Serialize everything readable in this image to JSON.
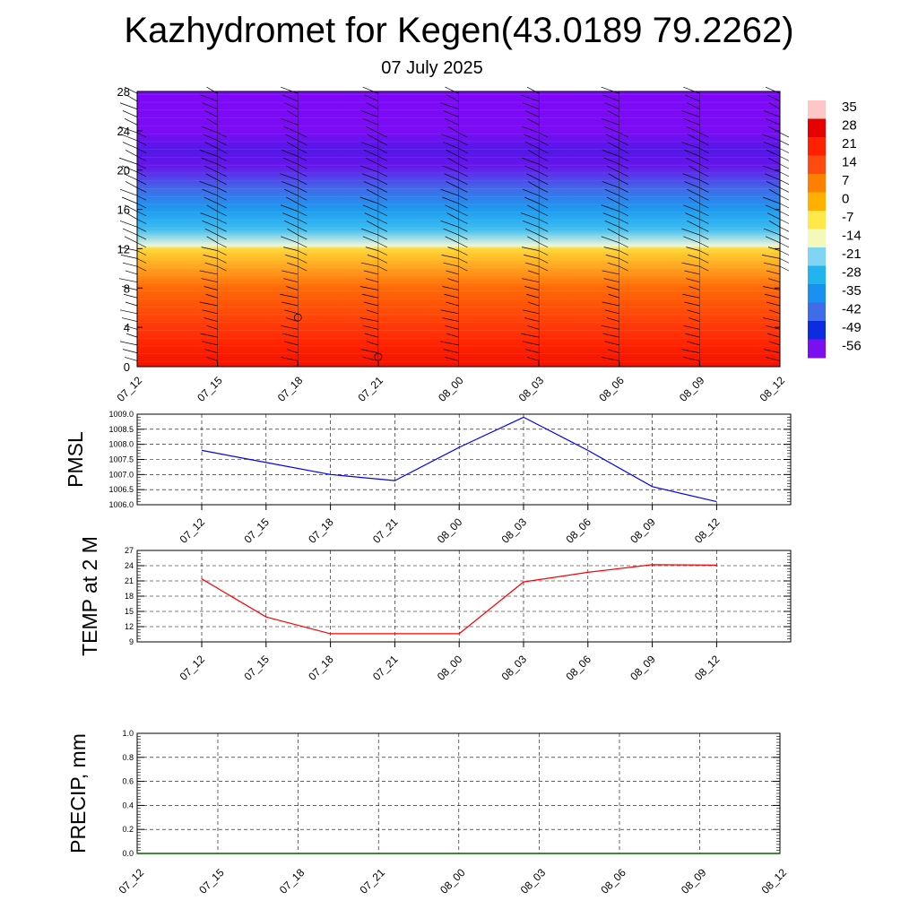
{
  "title": "Kazhydromet for Kegen(43.0189 79.2262)",
  "subtitle": "07 July 2025",
  "chart_data": [
    {
      "type": "heatmap",
      "name": "temperature cross-section",
      "x_tick_labels": [
        "07_12",
        "07_15",
        "07_18",
        "07_21",
        "08_00",
        "08_03",
        "08_06",
        "08_09",
        "08_12"
      ],
      "y_ticks": [
        0,
        4,
        8,
        12,
        16,
        20,
        24,
        28
      ],
      "ylim": [
        0,
        28
      ],
      "colorbar_labels": [
        "35",
        "28",
        "21",
        "14",
        "7",
        "0",
        "-7",
        "-14",
        "-21",
        "-28",
        "-35",
        "-42",
        "-49",
        "-56"
      ],
      "level_profile": [
        {
          "level": 0,
          "value": 24
        },
        {
          "level": 2,
          "value": 21
        },
        {
          "level": 4,
          "value": 17
        },
        {
          "level": 8,
          "value": 10
        },
        {
          "level": 12,
          "value": -5
        },
        {
          "level": 12.3,
          "value": -15
        },
        {
          "level": 14,
          "value": -26
        },
        {
          "level": 16,
          "value": -33
        },
        {
          "level": 18,
          "value": -42
        },
        {
          "level": 20.5,
          "value": -55
        },
        {
          "level": 22,
          "value": -54
        },
        {
          "level": 24,
          "value": -57
        },
        {
          "level": 28,
          "value": -58
        }
      ],
      "wind_barbs": true
    },
    {
      "type": "line",
      "ylabel": "PMSL",
      "x": [
        "07_12",
        "07_15",
        "07_18",
        "07_21",
        "08_00",
        "08_03",
        "08_06",
        "08_09",
        "08_12"
      ],
      "values": [
        1007.8,
        1007.4,
        1007.0,
        1006.8,
        1007.9,
        1008.9,
        1007.8,
        1006.6,
        1006.1
      ],
      "ylim": [
        1006.0,
        1009.0
      ],
      "y_tick_labels": [
        "1006.0",
        "1006.5",
        "1007.0",
        "1007.5",
        "1008.0",
        "1008.5",
        "1009.0"
      ],
      "color": "#0000ff",
      "grid": true
    },
    {
      "type": "line",
      "ylabel": "TEMP at 2 M",
      "x": [
        "07_12",
        "07_15",
        "07_18",
        "07_21",
        "08_00",
        "08_03",
        "08_06",
        "08_09",
        "08_12"
      ],
      "values": [
        21.4,
        13.9,
        10.6,
        10.6,
        10.6,
        20.8,
        22.7,
        24.2,
        24.1
      ],
      "ylim": [
        9,
        27
      ],
      "y_tick_labels": [
        "9",
        "12",
        "15",
        "18",
        "21",
        "24",
        "27"
      ],
      "color": "#ff0000",
      "grid": true
    },
    {
      "type": "line",
      "ylabel": "PRECIP, mm",
      "x": [
        "07_12",
        "07_15",
        "07_18",
        "07_21",
        "08_00",
        "08_03",
        "08_06",
        "08_09",
        "08_12"
      ],
      "values": [
        0,
        0,
        0,
        0,
        0,
        0,
        0,
        0,
        0
      ],
      "ylim": [
        0,
        1
      ],
      "y_tick_labels": [
        "0.0",
        "0.2",
        "0.4",
        "0.6",
        "0.8",
        "1.0"
      ],
      "color": "#006400",
      "grid": true
    }
  ]
}
